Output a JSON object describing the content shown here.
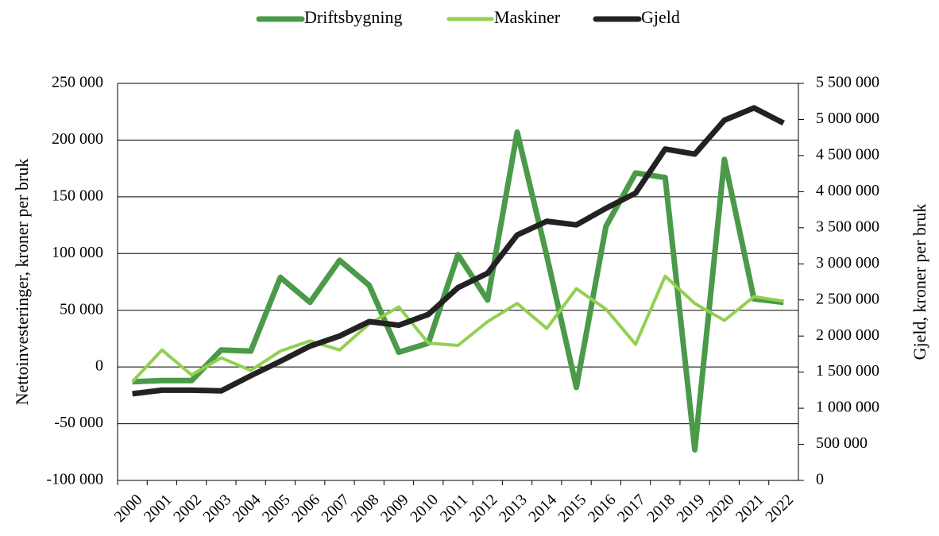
{
  "chart_data": {
    "type": "line",
    "categories": [
      "2000",
      "2001",
      "2002",
      "2003",
      "2004",
      "2005",
      "2006",
      "2007",
      "2008",
      "2009",
      "2010",
      "2011",
      "2012",
      "2013",
      "2014",
      "2015",
      "2016",
      "2017",
      "2018",
      "2019",
      "2020",
      "2021",
      "2022"
    ],
    "series": [
      {
        "name": "Driftsbygning",
        "color": "#4a9a4a",
        "values": [
          -13000,
          -12000,
          -12000,
          15000,
          14000,
          79000,
          57000,
          94000,
          72000,
          13000,
          21000,
          99000,
          59000,
          207000,
          98000,
          -18000,
          124000,
          171000,
          167000,
          -73000,
          183000,
          60000,
          57000
        ]
      },
      {
        "name": "Maskiner",
        "color": "#92d050",
        "values": [
          -13000,
          15000,
          -7000,
          8000,
          -3000,
          14000,
          23000,
          15000,
          38000,
          53000,
          21000,
          19000,
          40000,
          56000,
          34000,
          69000,
          51000,
          20000,
          80000,
          56000,
          41000,
          62000,
          58000
        ]
      },
      {
        "name": "Gjeld",
        "color": "#222222",
        "axis": "y2",
        "values": [
          1200000,
          1250000,
          1250000,
          1240000,
          1450000,
          1650000,
          1860000,
          2000000,
          2200000,
          2150000,
          2300000,
          2670000,
          2870000,
          3400000,
          3590000,
          3540000,
          3770000,
          3980000,
          4590000,
          4520000,
          4990000,
          5160000,
          4950000
        ]
      }
    ],
    "y_label": "Nettoinvesteringer, kroner per bruk",
    "y2_label": "Gjeld, kroner per bruk",
    "ylim": [
      -100000,
      250000
    ],
    "yticks": [
      {
        "value": -100000,
        "label": "-100 000"
      },
      {
        "value": -50000,
        "label": "-50 000"
      },
      0,
      {
        "value": 50000,
        "label": "50 000"
      },
      {
        "value": 100000,
        "label": "100 000"
      },
      {
        "value": 150000,
        "label": "150 000"
      },
      {
        "value": 200000,
        "label": "200 000"
      },
      {
        "value": 250000,
        "label": "250 000"
      }
    ],
    "y2lim": [
      0,
      5500000
    ],
    "y2ticks": [
      0,
      {
        "value": 500000,
        "label": "500 000"
      },
      {
        "value": 1000000,
        "label": "1 000 000"
      },
      {
        "value": 1500000,
        "label": "1 500 000"
      },
      {
        "value": 2000000,
        "label": "2 000 000"
      },
      {
        "value": 2500000,
        "label": "2 500 000"
      },
      {
        "value": 3000000,
        "label": "3 000 000"
      },
      {
        "value": 3500000,
        "label": "3 500 000"
      },
      {
        "value": 4000000,
        "label": "4 000 000"
      },
      {
        "value": 4500000,
        "label": "4 500 000"
      },
      {
        "value": 5000000,
        "label": "5 000 000"
      },
      {
        "value": 5500000,
        "label": "5 500 000"
      }
    ],
    "grid": true,
    "legend": "top"
  }
}
